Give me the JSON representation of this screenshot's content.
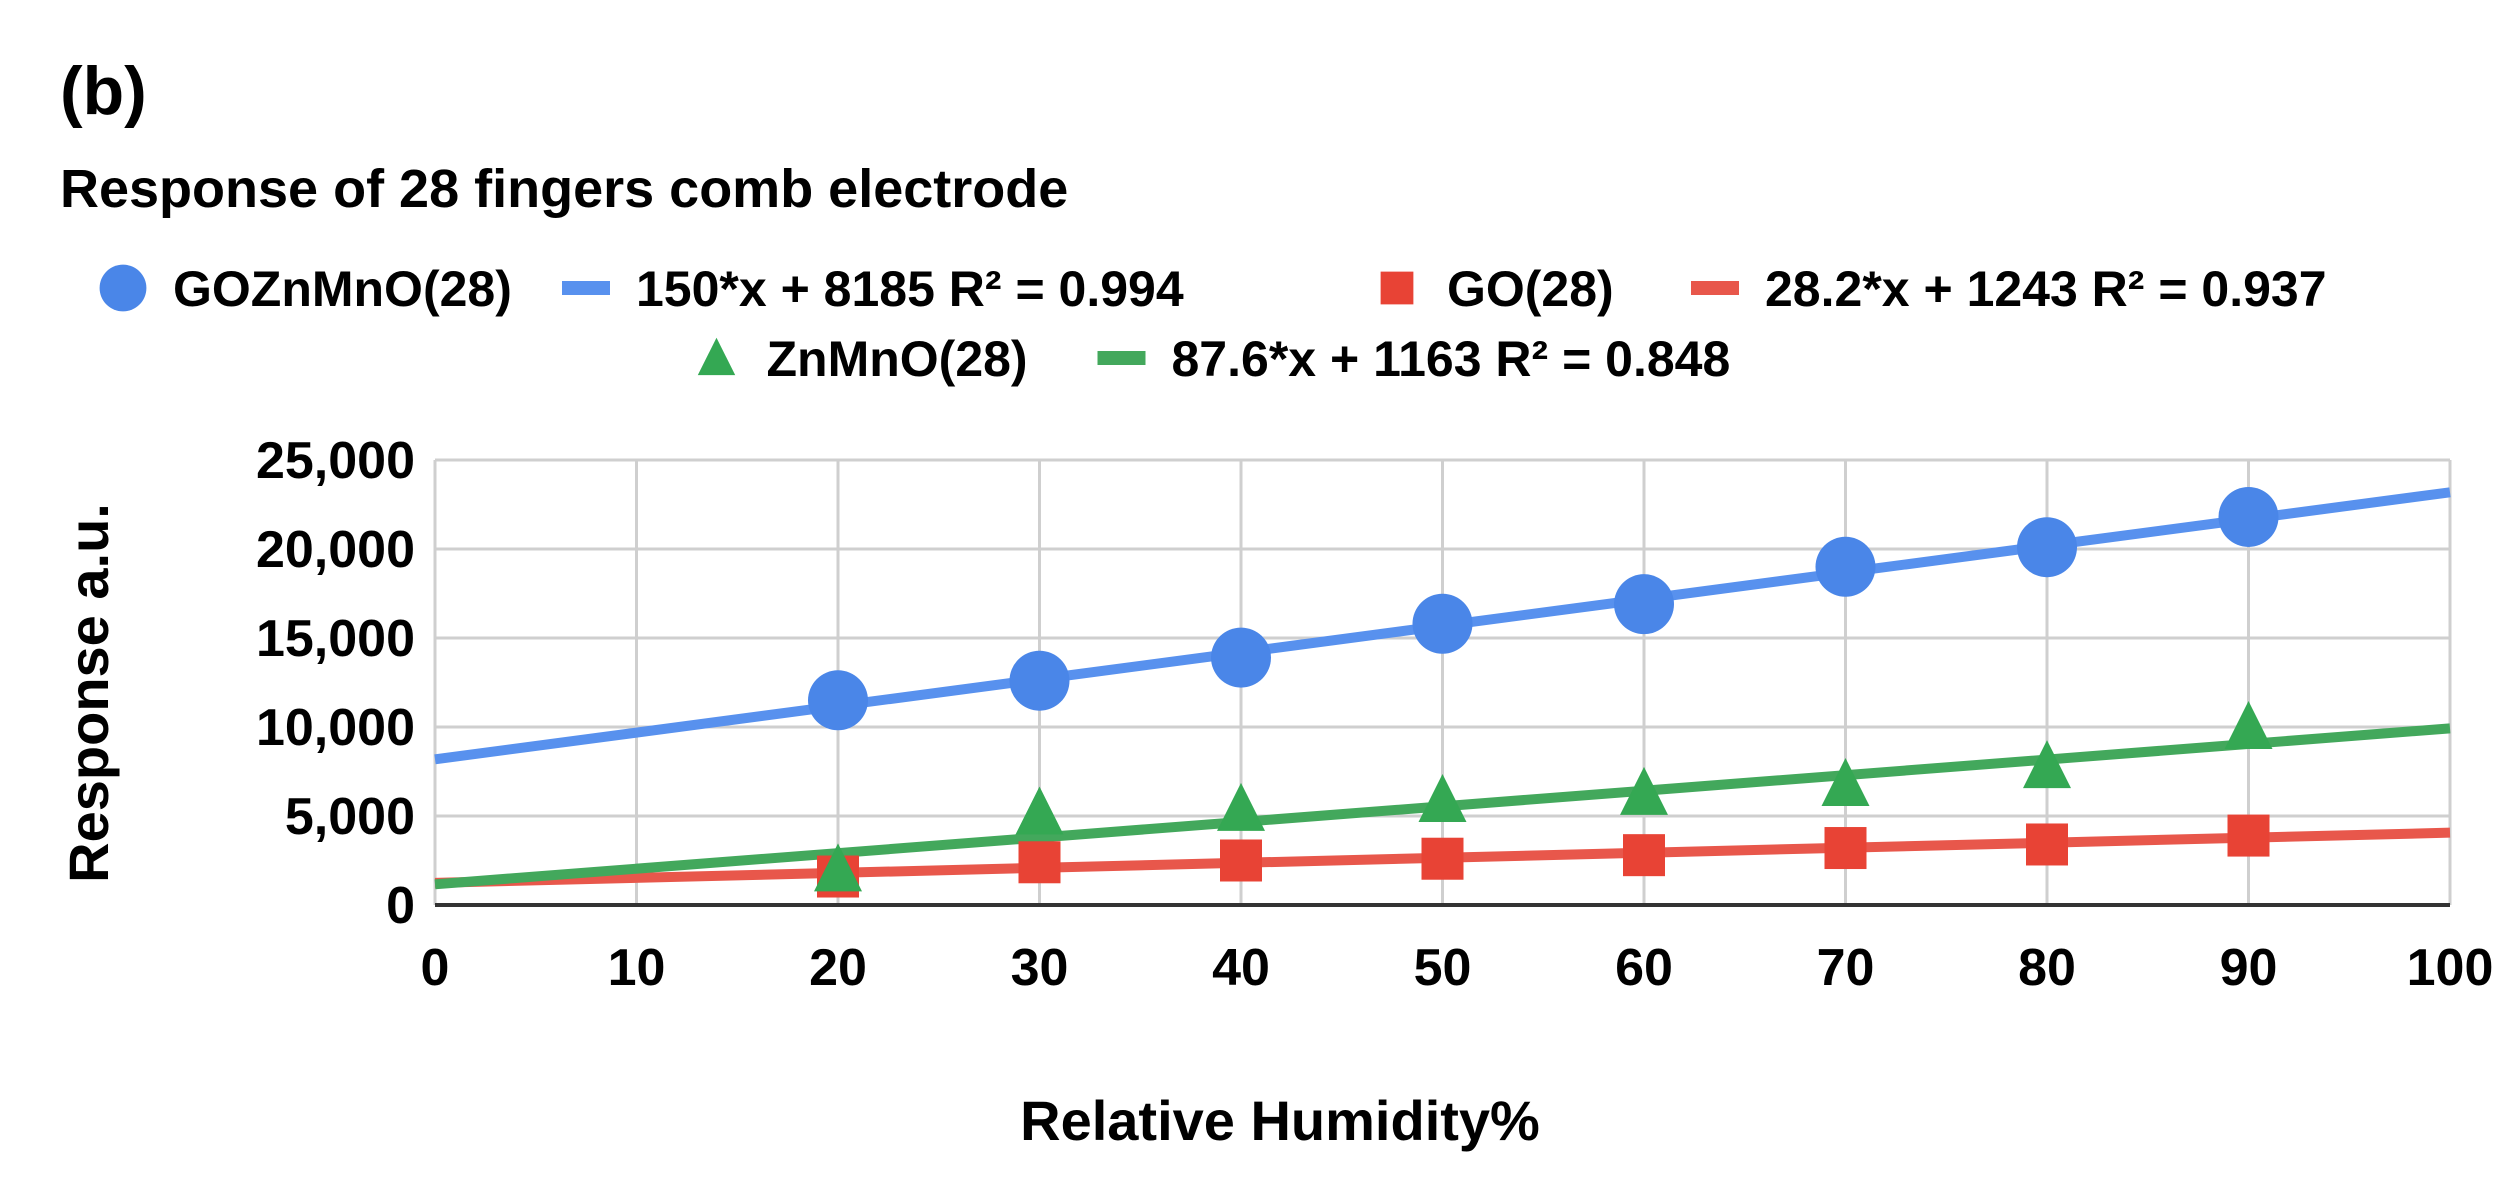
{
  "panel_label": "(b)",
  "chart_data": {
    "type": "scatter",
    "title": "Response of 28 fingers comb electrode",
    "xlabel": "Relative Humidity%",
    "ylabel": "Response a.u.",
    "xlim": [
      0,
      100
    ],
    "ylim": [
      0,
      25000
    ],
    "x_ticks": [
      0,
      10,
      20,
      30,
      40,
      50,
      60,
      70,
      80,
      90,
      100
    ],
    "y_ticks": [
      0,
      5000,
      10000,
      15000,
      20000,
      25000
    ],
    "x_tick_labels": [
      "0",
      "10",
      "20",
      "30",
      "40",
      "50",
      "60",
      "70",
      "80",
      "90",
      "100"
    ],
    "y_tick_labels": [
      "0",
      "5,000",
      "10,000",
      "15,000",
      "20,000",
      "25,000"
    ],
    "grid": true,
    "legend_position": "top",
    "series": [
      {
        "name": "GOZnMnO(28)",
        "marker": "circle",
        "color": "#4a86e8",
        "x": [
          20,
          30,
          40,
          50,
          60,
          70,
          80,
          90
        ],
        "values": [
          11500,
          12600,
          13900,
          15800,
          16900,
          19000,
          20100,
          21800
        ],
        "trendline": {
          "label": "150*x + 8185 R² = 0.994",
          "slope": 150,
          "intercept": 8185,
          "color": "#5891ee"
        }
      },
      {
        "name": "GO(28)",
        "marker": "square",
        "color": "#e84335",
        "x": [
          20,
          30,
          40,
          50,
          60,
          70,
          80,
          90
        ],
        "values": [
          1600,
          2400,
          2500,
          2600,
          2800,
          3200,
          3400,
          3900
        ],
        "trendline": {
          "label": "28.2*x + 1243 R² = 0.937",
          "slope": 28.2,
          "intercept": 1243,
          "color": "#e8574b"
        }
      },
      {
        "name": "ZnMnO(28)",
        "marker": "triangle",
        "color": "#34a853",
        "x": [
          20,
          30,
          40,
          50,
          60,
          70,
          80,
          90
        ],
        "values": [
          2000,
          5200,
          5400,
          5900,
          6300,
          6800,
          7800,
          10000
        ],
        "trendline": {
          "label": "87.6*x + 1163 R² = 0.848",
          "slope": 87.6,
          "intercept": 1163,
          "color": "#43a85c"
        }
      }
    ]
  }
}
